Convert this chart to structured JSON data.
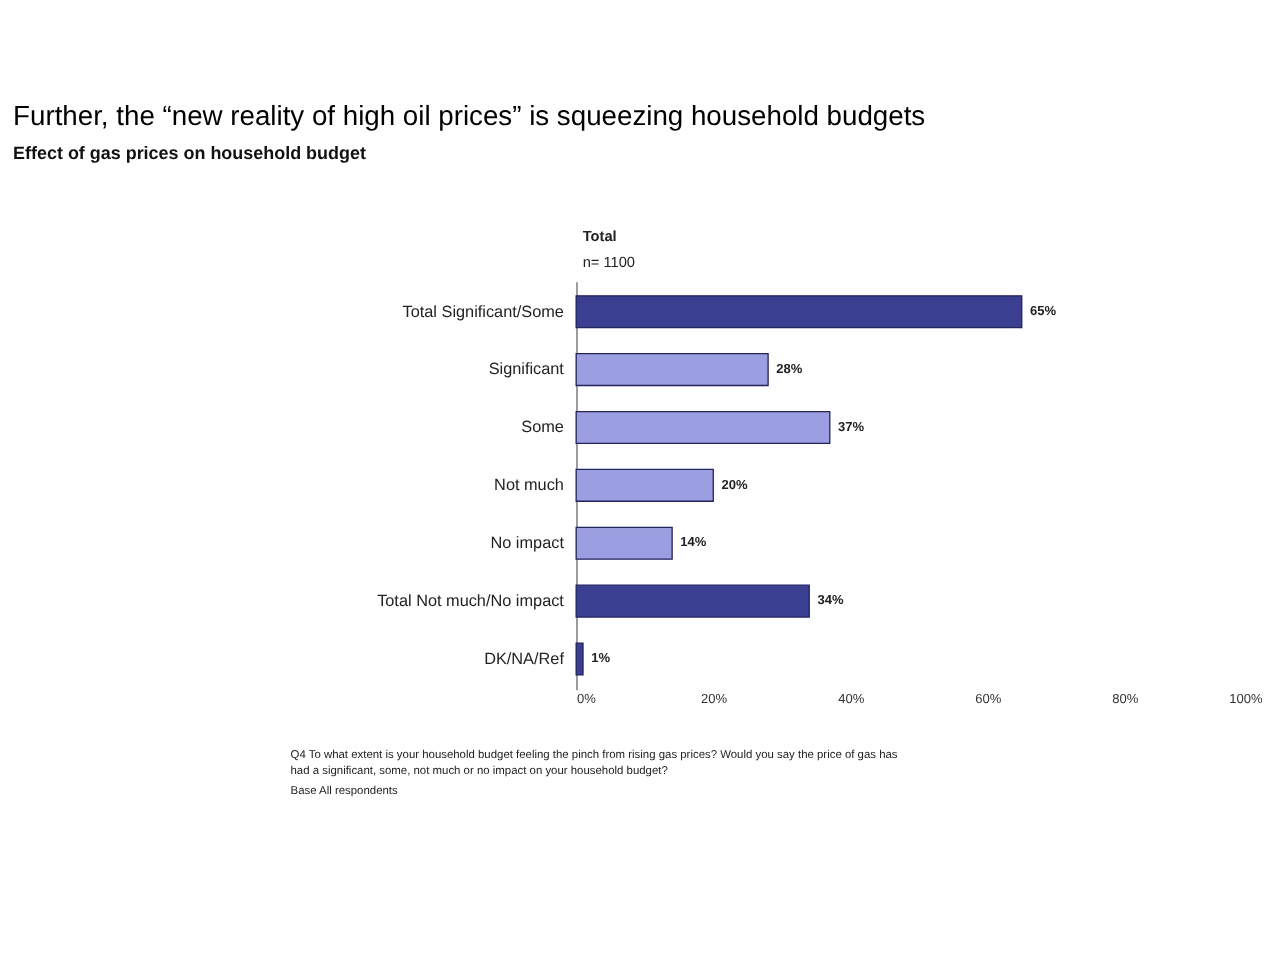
{
  "chart_data": {
    "type": "bar",
    "orientation": "horizontal",
    "title": "Further, the “new reality of high oil prices” is squeezing household budgets",
    "subtitle": "Effect of gas prices on household budget",
    "categories": [
      "Total Significant/Some",
      "Significant",
      "Some",
      "Not much",
      "No impact",
      "Total Not much/No impact",
      "DK/NA/Ref"
    ],
    "values": [
      65,
      28,
      37,
      20,
      14,
      34,
      1
    ],
    "colors": [
      "#3b3f92",
      "#9c9ee2",
      "#9c9ee2",
      "#9c9ee2",
      "#9c9ee2",
      "#3b3f92",
      "#3b3f92"
    ],
    "value_labels": [
      "65%",
      "28%",
      "37%",
      "20%",
      "14%",
      "34%",
      "1%"
    ],
    "xlim": [
      0,
      100
    ],
    "xticks": [
      {
        "value": 0,
        "label": "0%"
      },
      {
        "value": 20,
        "label": "20%"
      },
      {
        "value": 40,
        "label": "40%"
      },
      {
        "value": 60,
        "label": "60%"
      },
      {
        "value": 80,
        "label": "80%"
      },
      {
        "value": 100,
        "label": "100%"
      }
    ],
    "annotations": [
      "Total",
      "n= 1100",
      "Q4  To what extent is your household budget feeling the pinch from rising gas prices? Would you say the price of gas has had a significant, some, not much or no impact on your household budget?",
      "Base  All respondents"
    ]
  }
}
